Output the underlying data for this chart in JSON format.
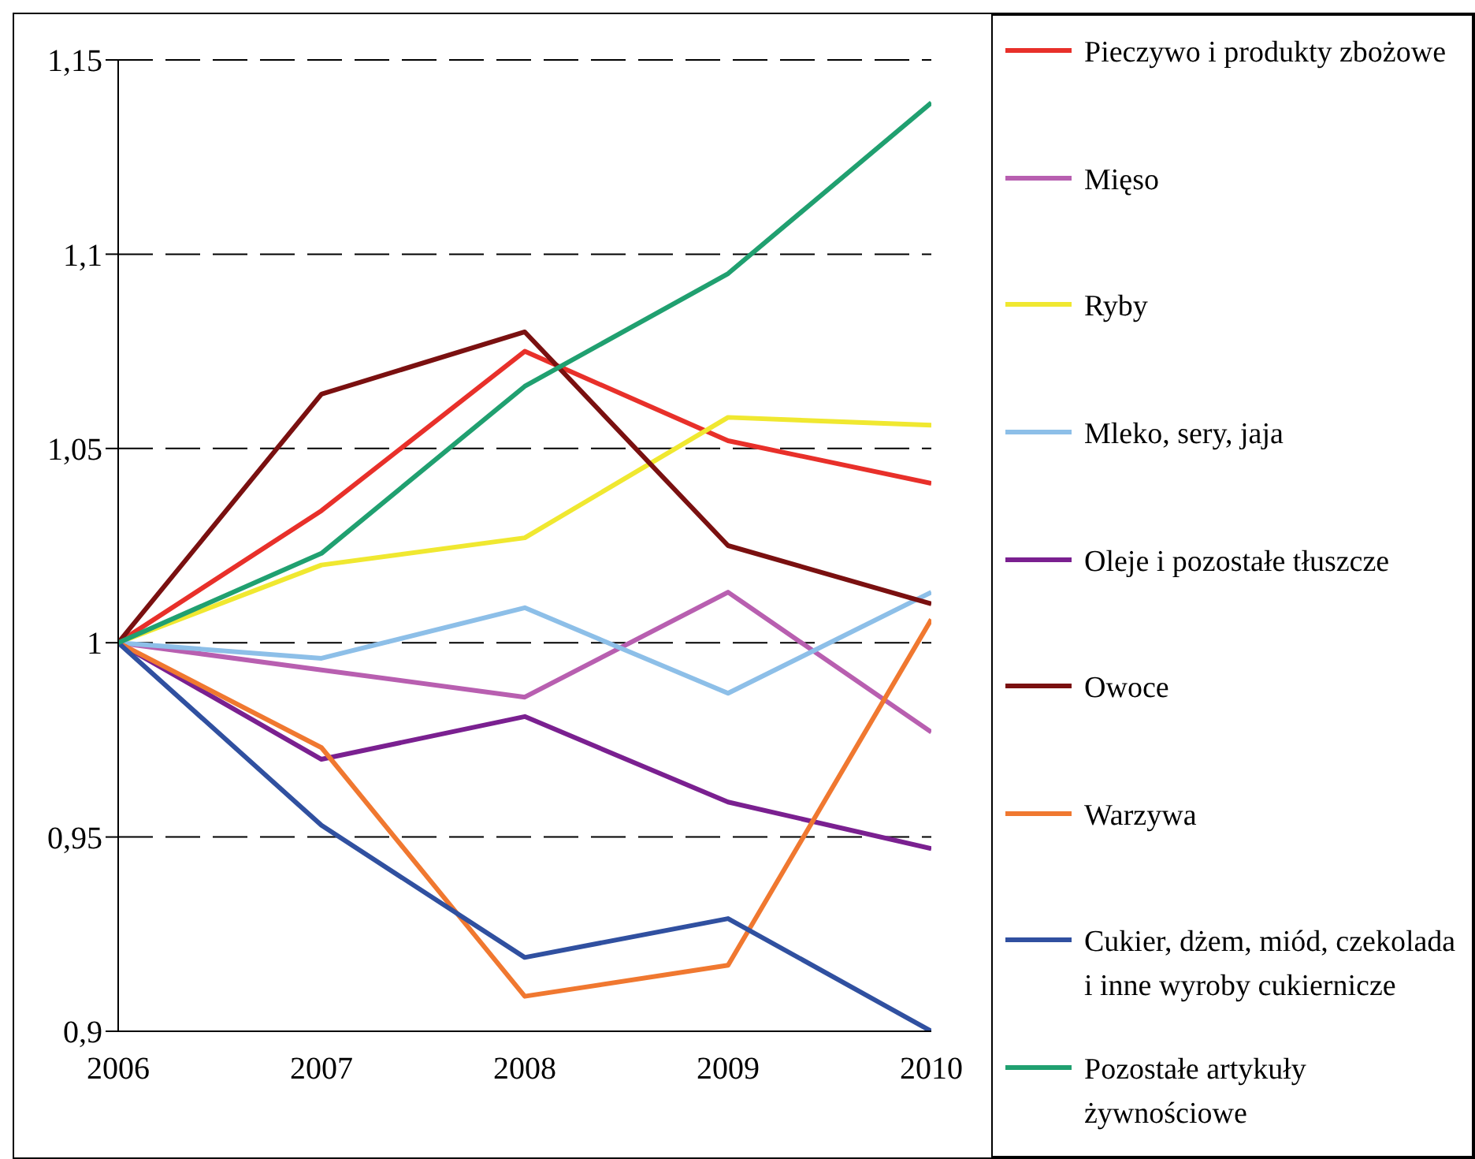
{
  "chart_data": {
    "type": "line",
    "x": [
      2006,
      2007,
      2008,
      2009,
      2010
    ],
    "series": [
      {
        "name": "Pieczywo i produkty zbożowe",
        "color": "#e8302a",
        "values": [
          1,
          1.034,
          1.075,
          1.052,
          1.041
        ]
      },
      {
        "name": "Mięso",
        "color": "#b85fb0",
        "values": [
          1,
          0.993,
          0.986,
          1.013,
          0.977
        ]
      },
      {
        "name": "Ryby",
        "color": "#f0e830",
        "values": [
          1,
          1.02,
          1.027,
          1.058,
          1.056
        ]
      },
      {
        "name": "Mleko, sery, jaja",
        "color": "#8dbfe8",
        "values": [
          1,
          0.996,
          1.009,
          0.987,
          1.013
        ]
      },
      {
        "name": "Oleje i pozostałe tłuszcze",
        "color": "#7a2090",
        "values": [
          1,
          0.97,
          0.981,
          0.959,
          0.947
        ]
      },
      {
        "name": "Owoce",
        "color": "#7a1010",
        "values": [
          1,
          1.064,
          1.08,
          1.025,
          1.01
        ]
      },
      {
        "name": "Warzywa",
        "color": "#f07830",
        "values": [
          1,
          0.973,
          0.909,
          0.917,
          1.006
        ]
      },
      {
        "name": "Cukier, dżem, miód, czekolada i inne wyroby cukiernicze",
        "color": "#3050a0",
        "values": [
          1,
          0.953,
          0.919,
          0.929,
          0.9
        ]
      },
      {
        "name": "Pozostałe artykuły żywnościowe",
        "color": "#20a070",
        "values": [
          1,
          1.023,
          1.066,
          1.095,
          1.139
        ]
      }
    ],
    "xlim": [
      2006,
      2010
    ],
    "xticks": [
      2006,
      2007,
      2008,
      2009,
      2010
    ],
    "ylim": [
      0.9,
      1.15
    ],
    "yticks": [
      {
        "value": 0.9,
        "label": "0,9"
      },
      {
        "value": 0.95,
        "label": "0,95"
      },
      {
        "value": 1,
        "label": "1"
      },
      {
        "value": 1.05,
        "label": "1,05"
      },
      {
        "value": 1.1,
        "label": "1,1"
      },
      {
        "value": 1.15,
        "label": "1,15"
      }
    ],
    "grid": "y",
    "legend": "right",
    "marker": "none",
    "line_style": "solid"
  }
}
